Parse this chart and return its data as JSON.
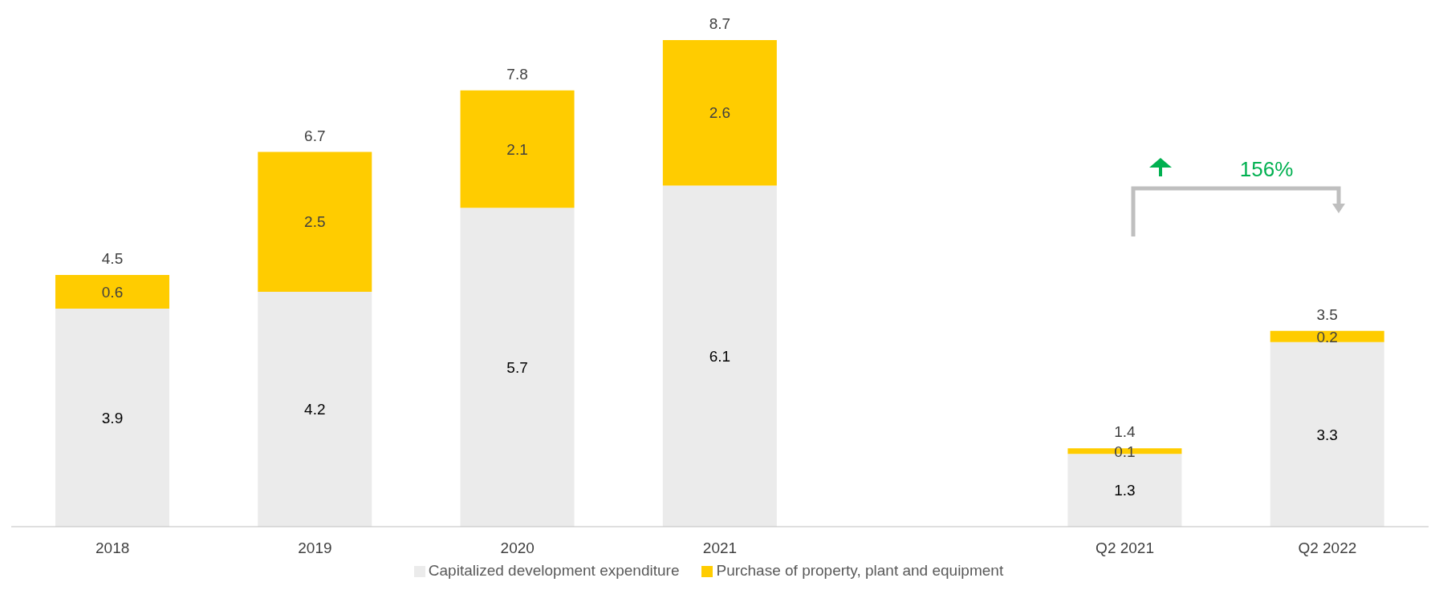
{
  "chart_data": {
    "type": "bar",
    "stacked": true,
    "categories": [
      "2018",
      "2019",
      "2020",
      "2021",
      null,
      "Q2 2021",
      "Q2 2022"
    ],
    "series": [
      {
        "name": "Capitalized development expenditure",
        "color": "#ebebeb",
        "values": [
          3.9,
          4.2,
          5.7,
          6.1,
          null,
          1.3,
          3.3
        ]
      },
      {
        "name": "Purchase of property, plant and equipment",
        "color": "#ffcc00",
        "values": [
          0.6,
          2.5,
          2.1,
          2.6,
          null,
          0.1,
          0.2
        ]
      }
    ],
    "data_labels": true,
    "totals": [
      "4.5",
      "6.7",
      "7.8",
      "8.7",
      null,
      "1.4",
      "3.5"
    ],
    "annotations": [
      "156%"
    ],
    "legend": "bottom"
  }
}
